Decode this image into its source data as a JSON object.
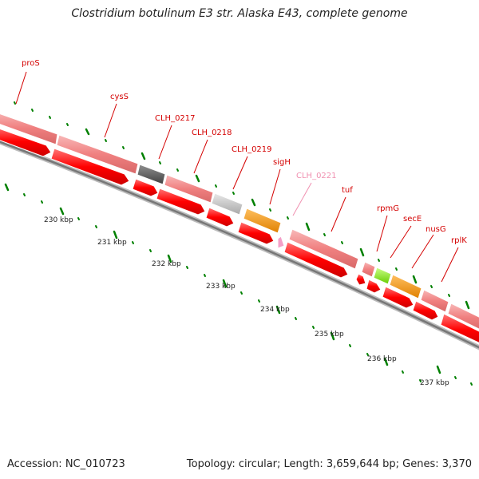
{
  "title": "Clostridium botulinum E3 str. Alaska E43, complete genome",
  "footer": {
    "accession": "Accession: NC_010723",
    "summary": "Topology: circular; Length: 3,659,644 bp; Genes: 3,370"
  },
  "ticks": [
    "230 kbp",
    "231 kbp",
    "232 kbp",
    "233 kbp",
    "234 kbp",
    "235 kbp",
    "236 kbp",
    "237 kbp"
  ],
  "genes": [
    {
      "name": "proS",
      "color": "#d40000"
    },
    {
      "name": "cysS",
      "color": "#d40000"
    },
    {
      "name": "CLH_0217",
      "color": "#d40000"
    },
    {
      "name": "CLH_0218",
      "color": "#d40000"
    },
    {
      "name": "CLH_0219",
      "color": "#d40000"
    },
    {
      "name": "sigH",
      "color": "#d40000"
    },
    {
      "name": "CLH_0221",
      "color": "#f090b0"
    },
    {
      "name": "tuf",
      "color": "#d40000"
    },
    {
      "name": "rpmG",
      "color": "#d40000"
    },
    {
      "name": "secE",
      "color": "#d40000"
    },
    {
      "name": "nusG",
      "color": "#d40000"
    },
    {
      "name": "rplK",
      "color": "#d40000"
    }
  ],
  "colors": {
    "cds_red": "#ff0000",
    "feature_pink": "#f08080",
    "feature_dark_gray": "#606060",
    "feature_light_gray": "#c0c0c0",
    "feature_orange": "#ff9900",
    "feature_green": "#99ff33",
    "backbone": "#808080",
    "tick_green": "#008000",
    "label_red": "#d40000"
  }
}
